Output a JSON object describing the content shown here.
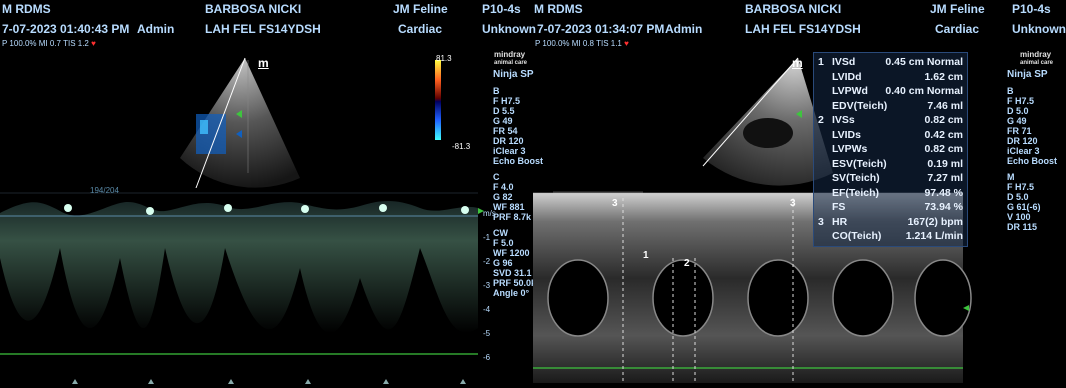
{
  "left": {
    "header": {
      "operator": "M RDMS",
      "patient": "BARBOSA NICKI",
      "clinic": "JM Feline",
      "probe": "P10-4s",
      "datetime": "7-07-2023  01:40:43 PM",
      "user": "Admin",
      "patient_id": "LAH FEL FS14YDSH",
      "exam": "Cardiac",
      "unknown": "Unknown"
    },
    "power": "P 100.0%  MI 0.7  TIS 1.2",
    "mode_icon": "m",
    "scale": {
      "top": "81.3",
      "bottom": "-81.3"
    },
    "cursor": "194/204",
    "params": [
      "B",
      "F H7.5",
      "D 5.5",
      "G 49",
      "FR 54",
      "DR 120",
      "iClear 3",
      "Echo Boost",
      "",
      "C",
      "F 4.0",
      "G 82",
      "WF 881",
      "PRF 8.7k",
      "",
      "CW",
      "F 5.0",
      "WF 1200",
      "G 96",
      "SVD 31.1",
      "PRF 50.0k",
      "Angle 0°"
    ],
    "doppler_axis": [
      "m/s",
      "-1",
      "-2",
      "-3",
      "-4",
      "-5",
      "-6"
    ]
  },
  "right": {
    "header": {
      "operator": "M RDMS",
      "patient": "BARBOSA NICKI",
      "clinic": "JM Feline",
      "probe": "P10-4s",
      "datetime": "7-07-2023  01:34:07 PM",
      "user": "Admin",
      "patient_id": "LAH FEL FS14YDSH",
      "exam": "Cardiac",
      "unknown": "Unknown"
    },
    "power": "P 100.0%  MI 0.8  TIS 1.1",
    "mode_icon": "m",
    "logo": {
      "brand": "mindray",
      "sub": "animal care",
      "model": "Ninja SP"
    },
    "params": [
      "B",
      "F H7.5",
      "D 5.0",
      "G 49",
      "FR 71",
      "DR 120",
      "iClear 3",
      "Echo Boost",
      "",
      "M",
      "F H7.5",
      "D 5.0",
      "G 61(-6)",
      "V 100",
      "DR 115"
    ],
    "markers": [
      "3",
      "3",
      "1",
      "2"
    ],
    "measurements": [
      {
        "num": "1",
        "label": "IVSd",
        "value": "0.45 cm Normal"
      },
      {
        "num": "",
        "label": "LVIDd",
        "value": "1.62 cm"
      },
      {
        "num": "",
        "label": "LVPWd",
        "value": "0.40 cm Normal"
      },
      {
        "num": "",
        "label": "EDV(Teich)",
        "value": "7.46 ml"
      },
      {
        "num": "2",
        "label": "IVSs",
        "value": "0.82 cm"
      },
      {
        "num": "",
        "label": "LVIDs",
        "value": "0.42 cm"
      },
      {
        "num": "",
        "label": "LVPWs",
        "value": "0.82 cm"
      },
      {
        "num": "",
        "label": "ESV(Teich)",
        "value": "0.19 ml"
      },
      {
        "num": "",
        "label": "SV(Teich)",
        "value": "7.27 ml"
      },
      {
        "num": "",
        "label": "EF(Teich)",
        "value": "97.48 %"
      },
      {
        "num": "",
        "label": "FS",
        "value": "73.94 %"
      },
      {
        "num": "3",
        "label": "HR",
        "value": "167(2) bpm"
      },
      {
        "num": "",
        "label": "CO(Teich)",
        "value": "1.214 L/min"
      }
    ]
  },
  "left_logo": {
    "brand": "mindray",
    "sub": "animal care",
    "model": "Ninja SP"
  },
  "colors": {
    "header_text": "#b8dcff",
    "accent_green": "#3ec43e",
    "doppler_trace": "#9ff0c0",
    "heart_icon": "#ff3030"
  }
}
